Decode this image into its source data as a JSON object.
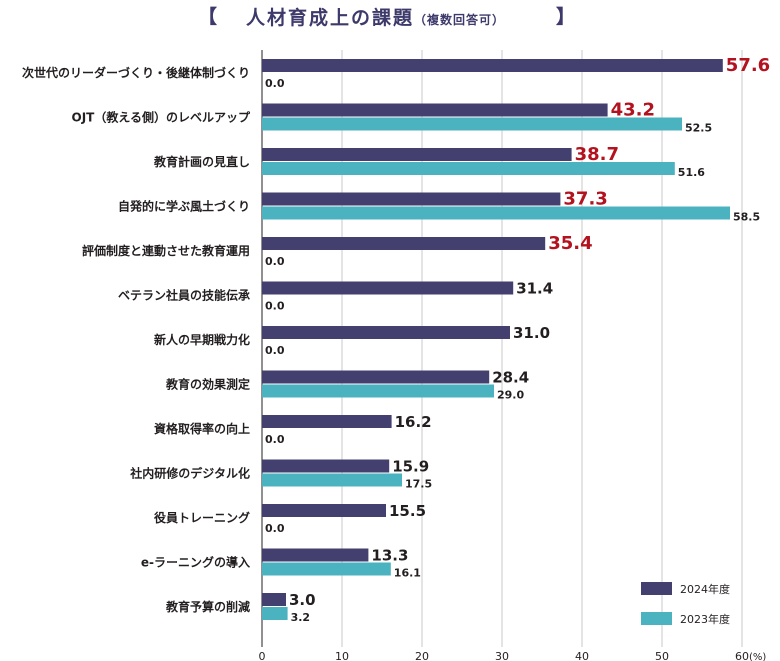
{
  "chart_data": {
    "type": "bar",
    "orientation": "horizontal",
    "title": "人材育成上の課題",
    "subtitle": "（複数回答可）",
    "title_open_bracket": "【",
    "title_close_bracket": "】",
    "categories": [
      "次世代のリーダーづくり・後継体制づくり",
      "OJT（教える側）のレベルアップ",
      "教育計画の見直し",
      "自発的に学ぶ風土づくり",
      "評価制度と連動させた教育運用",
      "ベテラン社員の技能伝承",
      "新人の早期戦力化",
      "教育の効果測定",
      "資格取得率の向上",
      "社内研修のデジタル化",
      "役員トレーニング",
      "e-ラーニングの導入",
      "教育予算の削減"
    ],
    "series": [
      {
        "name": "2024年度",
        "color": "#433f6e",
        "values": [
          57.6,
          43.2,
          38.7,
          37.3,
          35.4,
          31.4,
          31.0,
          28.4,
          16.2,
          15.9,
          15.5,
          13.3,
          3.0
        ],
        "labels": [
          "57.6",
          "43.2",
          "38.7",
          "37.3",
          "35.4",
          "31.4",
          "31.0",
          "28.4",
          "16.2",
          "15.9",
          "15.5",
          "13.3",
          "3.0"
        ]
      },
      {
        "name": "2023年度",
        "color": "#4bb3bf",
        "values": [
          0.0,
          52.5,
          51.6,
          58.5,
          0.0,
          0.0,
          0.0,
          29.0,
          0.0,
          17.5,
          0.0,
          16.1,
          3.2
        ],
        "labels": [
          "0.0",
          "52.5",
          "51.6",
          "58.5",
          "0.0",
          "0.0",
          "0.0",
          "29.0",
          "0.0",
          "17.5",
          "0.0",
          "16.1",
          "3.2"
        ]
      }
    ],
    "highlight_top_n": 5,
    "highlight_color": "#b3121f",
    "label_color": "#231f20",
    "x_ticks": [
      0,
      10,
      20,
      30,
      40,
      50,
      60
    ],
    "x_tick_labels": [
      "0",
      "10",
      "20",
      "30",
      "40",
      "50",
      "60"
    ],
    "x_unit": "(%)",
    "xlim": [
      0,
      60
    ],
    "grid": true,
    "legend_position": "bottom-right"
  }
}
